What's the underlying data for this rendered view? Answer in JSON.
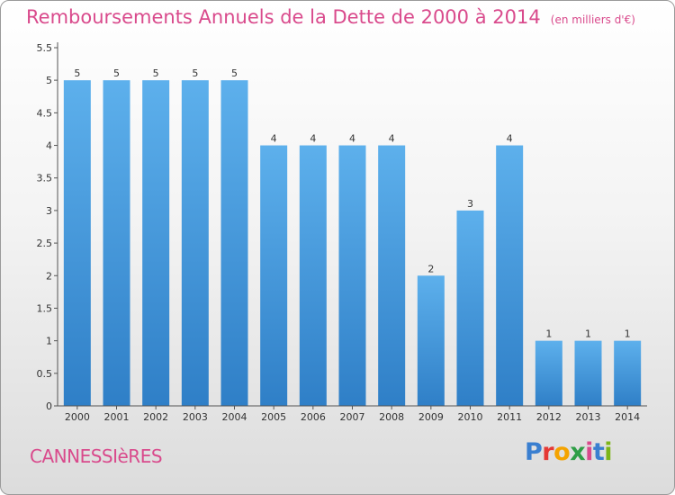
{
  "header": {
    "title": "Remboursements Annuels de la Dette de 2000 à 2014",
    "unit_note": "(en milliers d'€)"
  },
  "footer": {
    "commune": "CANNESSIèRES",
    "logo": [
      "P",
      "r",
      "o",
      "x",
      "i",
      "t",
      "i"
    ],
    "logo_colors": [
      "#3a7fd0",
      "#e53935",
      "#f4a300",
      "#2e9e46",
      "#d94a8c",
      "#3a7fd0",
      "#7cb518"
    ]
  },
  "chart_data": {
    "type": "bar",
    "categories": [
      "2000",
      "2001",
      "2002",
      "2003",
      "2004",
      "2005",
      "2006",
      "2007",
      "2008",
      "2009",
      "2010",
      "2011",
      "2012",
      "2013",
      "2014"
    ],
    "values": [
      5,
      5,
      5,
      5,
      5,
      4,
      4,
      4,
      4,
      2,
      3,
      4,
      1,
      1,
      1
    ],
    "y_ticks": [
      "0",
      "0.5",
      "1",
      "1.5",
      "2",
      "2.5",
      "3",
      "3.5",
      "4",
      "4.5",
      "5",
      "5.5"
    ],
    "ylim": [
      0,
      5.5
    ],
    "grid": false,
    "bar_color": "#4da3e4"
  }
}
